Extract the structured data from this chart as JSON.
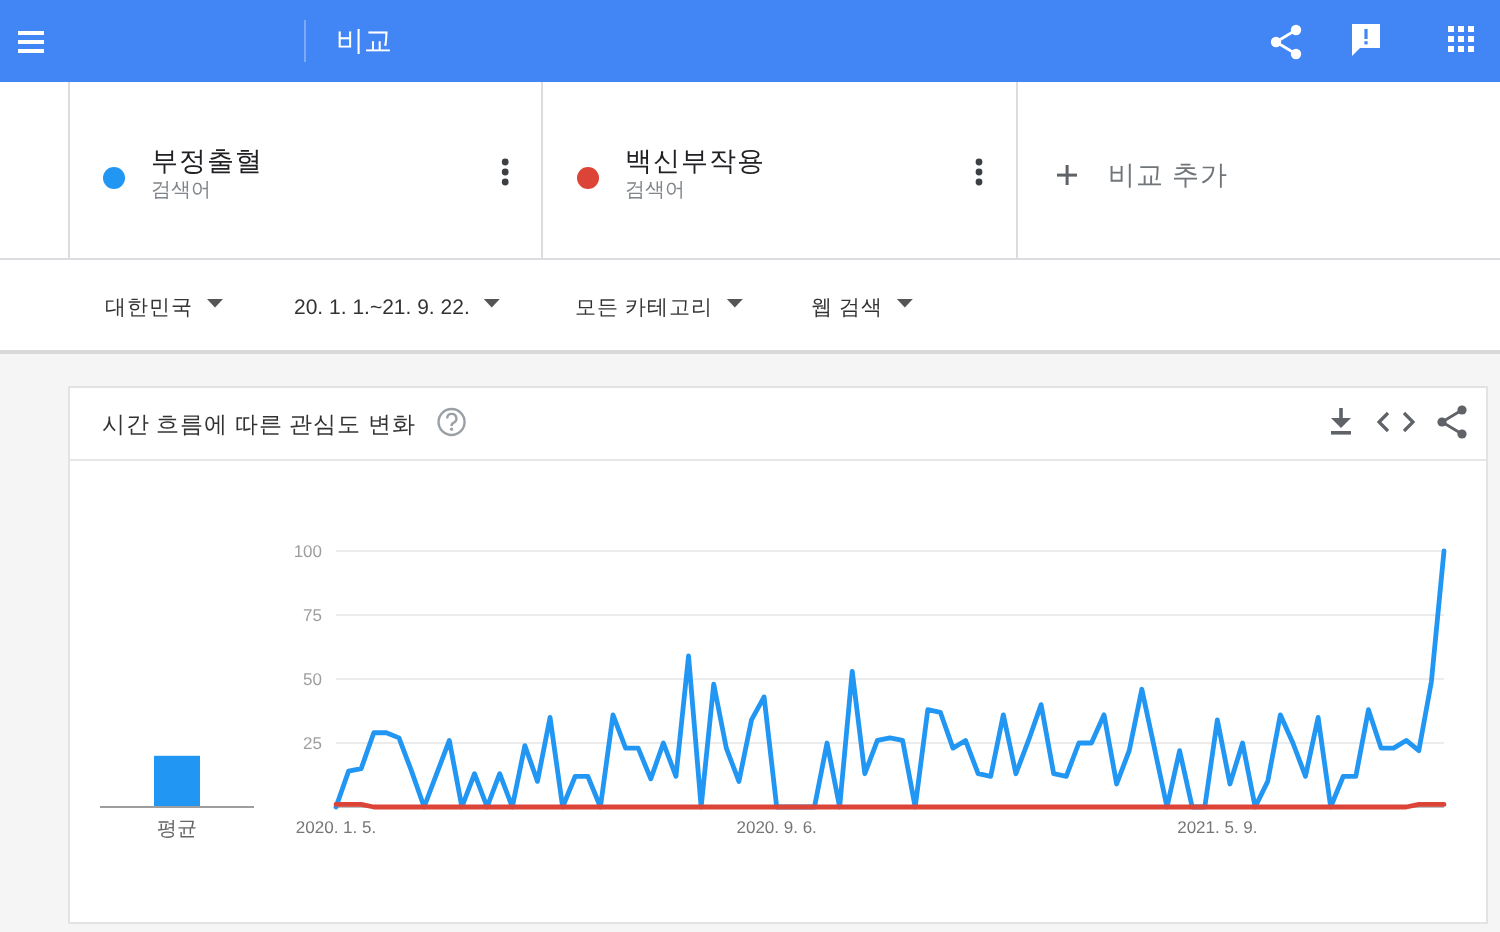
{
  "chart_data": [
    {
      "type": "other",
      "annotations": [
        "비교",
        "검색어",
        "검색어",
        "비교 추가",
        "대한민국",
        "20. 1. 1.~21. 9. 22.",
        "모든 카테고리",
        "웹 검색"
      ]
    },
    {
      "type": "bar",
      "categories": [
        "평균"
      ],
      "series": [
        {
          "color": "#2196f3",
          "values": [
            20
          ]
        }
      ],
      "ylim": [
        0,
        100
      ],
      "tick_labels": "x"
    },
    {
      "type": "line",
      "title": "시간 흐름에 따른 관심도 변화",
      "x": [
        "2020-01-05",
        "2020-01-12",
        "2020-01-19",
        "2020-01-26",
        "2020-02-02",
        "2020-02-09",
        "2020-02-16",
        "2020-02-23",
        "2020-03-01",
        "2020-03-08",
        "2020-03-15",
        "2020-03-22",
        "2020-03-29",
        "2020-04-05",
        "2020-04-12",
        "2020-04-19",
        "2020-04-26",
        "2020-05-03",
        "2020-05-10",
        "2020-05-17",
        "2020-05-24",
        "2020-05-31",
        "2020-06-07",
        "2020-06-14",
        "2020-06-21",
        "2020-06-28",
        "2020-07-05",
        "2020-07-12",
        "2020-07-19",
        "2020-07-26",
        "2020-08-02",
        "2020-08-09",
        "2020-08-16",
        "2020-08-23",
        "2020-08-30",
        "2020-09-06",
        "2020-09-13",
        "2020-09-20",
        "2020-09-27",
        "2020-10-04",
        "2020-10-11",
        "2020-10-18",
        "2020-10-25",
        "2020-11-01",
        "2020-11-08",
        "2020-11-15",
        "2020-11-22",
        "2020-11-29",
        "2020-12-06",
        "2020-12-13",
        "2020-12-20",
        "2020-12-27",
        "2021-01-03",
        "2021-01-10",
        "2021-01-17",
        "2021-01-24",
        "2021-01-31",
        "2021-02-07",
        "2021-02-14",
        "2021-02-21",
        "2021-02-28",
        "2021-03-07",
        "2021-03-14",
        "2021-03-21",
        "2021-03-28",
        "2021-04-04",
        "2021-04-11",
        "2021-04-18",
        "2021-04-25",
        "2021-05-02",
        "2021-05-09",
        "2021-05-16",
        "2021-05-23",
        "2021-05-30",
        "2021-06-06",
        "2021-06-13",
        "2021-06-20",
        "2021-06-27",
        "2021-07-04",
        "2021-07-11",
        "2021-07-18",
        "2021-07-25",
        "2021-08-01",
        "2021-08-08",
        "2021-08-15",
        "2021-08-22",
        "2021-08-29",
        "2021-09-05",
        "2021-09-12"
      ],
      "xlim": [
        "2020-01-05",
        "2021-09-12"
      ],
      "xticks": [
        {
          "value": "2020-01-05",
          "label": "2020. 1. 5."
        },
        {
          "value": "2020-09-06",
          "label": "2020. 9. 6."
        },
        {
          "value": "2021-05-09",
          "label": "2021. 5. 9."
        }
      ],
      "ylim": [
        0,
        100
      ],
      "yticks": [
        25,
        50,
        75,
        100
      ],
      "grid": "y",
      "legend": "top",
      "series": [
        {
          "name": "부정출혈",
          "color": "#2196f3",
          "values": [
            0,
            14,
            15,
            29,
            29,
            27,
            14,
            0,
            13,
            26,
            0,
            13,
            0,
            13,
            0,
            24,
            10,
            35,
            0,
            12,
            12,
            0,
            36,
            23,
            23,
            11,
            25,
            12,
            59,
            0,
            48,
            23,
            10,
            34,
            43,
            0,
            0,
            0,
            0,
            25,
            0,
            53,
            13,
            26,
            27,
            26,
            0,
            38,
            37,
            23,
            26,
            13,
            12,
            36,
            13,
            26,
            40,
            13,
            12,
            25,
            25,
            36,
            9,
            22,
            46,
            23,
            0,
            22,
            0,
            0,
            34,
            9,
            25,
            0,
            10,
            36,
            25,
            12,
            35,
            0,
            12,
            12,
            38,
            23,
            23,
            26,
            22,
            49,
            100
          ]
        },
        {
          "name": "백신부작용",
          "color": "#db4437",
          "values": [
            1,
            1,
            1,
            0,
            0,
            0,
            0,
            0,
            0,
            0,
            0,
            0,
            0,
            0,
            0,
            0,
            0,
            0,
            0,
            0,
            0,
            0,
            0,
            0,
            0,
            0,
            0,
            0,
            0,
            0,
            0,
            0,
            0,
            0,
            0,
            0,
            0,
            0,
            0,
            0,
            0,
            0,
            0,
            0,
            0,
            0,
            0,
            0,
            0,
            0,
            0,
            0,
            0,
            0,
            0,
            0,
            0,
            0,
            0,
            0,
            0,
            0,
            0,
            0,
            0,
            0,
            0,
            0,
            0,
            0,
            0,
            0,
            0,
            0,
            0,
            0,
            0,
            0,
            0,
            0,
            0,
            0,
            0,
            0,
            0,
            0,
            1,
            1,
            1
          ]
        }
      ]
    }
  ]
}
